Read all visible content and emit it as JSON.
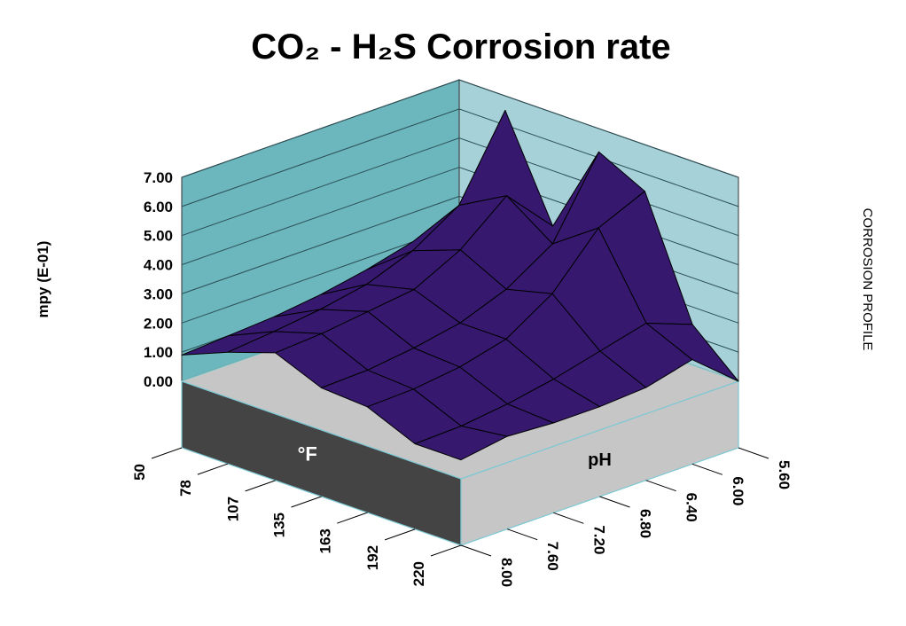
{
  "chart_data": {
    "type": "surface",
    "title": "CO₂ - H₂S Corrosion rate",
    "z_label": "mpy (E-01)",
    "annotation": "CORROSION PROFILE",
    "x_label": "°F",
    "y_label": "pH",
    "x": [
      50,
      78,
      107,
      135,
      163,
      192,
      220
    ],
    "y": [
      5.6,
      6.0,
      6.4,
      6.8,
      7.2,
      7.6,
      8.0
    ],
    "z": [
      [
        2.6,
        6.5,
        3.1,
        6.2,
        5.4,
        1.4,
        0.0
      ],
      [
        2.0,
        3.8,
        4.7,
        3.6,
        4.7,
        2.0,
        1.3
      ],
      [
        1.6,
        2.8,
        3.4,
        2.6,
        3.0,
        1.6,
        0.9
      ],
      [
        1.3,
        2.2,
        2.6,
        2.0,
        2.0,
        1.2,
        0.8
      ],
      [
        1.1,
        1.9,
        2.4,
        1.7,
        1.6,
        0.9,
        0.8
      ],
      [
        1.0,
        1.7,
        2.2,
        1.5,
        1.4,
        0.7,
        0.9
      ],
      [
        0.9,
        1.55,
        2.1,
        1.45,
        1.35,
        0.65,
        0.65
      ]
    ],
    "xlim": [
      50,
      220
    ],
    "xticks": [
      50,
      78,
      107,
      135,
      163,
      192,
      220
    ],
    "ylim": [
      8.0,
      5.6
    ],
    "yticks": [
      {
        "value": 5.6,
        "label": "5.60"
      },
      {
        "value": 6.0,
        "label": "6.00"
      },
      {
        "value": 6.4,
        "label": "6.40"
      },
      {
        "value": 6.8,
        "label": "6.80"
      },
      {
        "value": 7.2,
        "label": "7.20"
      },
      {
        "value": 7.6,
        "label": "7.60"
      },
      {
        "value": 8.0,
        "label": "8.00"
      }
    ],
    "zlim": [
      0,
      7
    ],
    "zticks": [
      {
        "value": 0,
        "label": "0.00"
      },
      {
        "value": 1,
        "label": "1.00"
      },
      {
        "value": 2,
        "label": "2.00"
      },
      {
        "value": 3,
        "label": "3.00"
      },
      {
        "value": 4,
        "label": "4.00"
      },
      {
        "value": 5,
        "label": "5.00"
      },
      {
        "value": 6,
        "label": "6.00"
      },
      {
        "value": 7,
        "label": "7.00"
      }
    ],
    "grid": true,
    "color": "#36196f"
  }
}
